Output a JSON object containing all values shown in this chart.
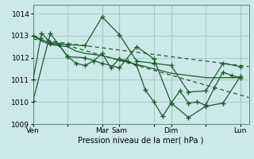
{
  "background_color": "#cce8e8",
  "grid_color": "#aacaca",
  "line_color": "#1a5c2a",
  "xlabel": "Pression niveau de la mer( hPa )",
  "ylim": [
    1009,
    1014.4
  ],
  "yticks": [
    1009,
    1010,
    1011,
    1012,
    1013,
    1014
  ],
  "xtick_labels": [
    "Ven",
    "",
    "Mar",
    "Sam",
    "",
    "Dim",
    "",
    "Lun"
  ],
  "xtick_positions": [
    0,
    12,
    24,
    30,
    42,
    48,
    60,
    72
  ],
  "xlim": [
    0,
    75
  ],
  "vline_positions": [
    24,
    30,
    48,
    72
  ],
  "trend1_x": [
    0,
    75
  ],
  "trend1_y": [
    1012.85,
    1011.6
  ],
  "trend2_x": [
    0,
    75
  ],
  "trend2_y": [
    1013.0,
    1010.2
  ],
  "s1_x": [
    0,
    3,
    6,
    9,
    12,
    15,
    18,
    21,
    24,
    27,
    30,
    33,
    36,
    39,
    42,
    45,
    48,
    51,
    54,
    57,
    60,
    63,
    66,
    69,
    72
  ],
  "s1_y": [
    1013.0,
    1012.75,
    1012.6,
    1012.55,
    1012.5,
    1012.3,
    1012.2,
    1012.15,
    1012.1,
    1012.0,
    1011.9,
    1011.8,
    1011.7,
    1011.6,
    1011.5,
    1011.4,
    1011.3,
    1011.25,
    1011.2,
    1011.15,
    1011.1,
    1011.1,
    1011.1,
    1011.1,
    1011.1
  ],
  "s2_x": [
    0,
    3,
    6,
    9,
    12,
    15,
    18,
    21,
    24,
    27,
    30,
    33,
    36,
    39,
    42,
    45,
    48,
    51,
    54,
    57,
    60,
    63,
    66,
    69,
    72
  ],
  "s2_y": [
    1011.0,
    1013.1,
    1012.7,
    1012.6,
    1012.05,
    1011.75,
    1011.65,
    1011.85,
    1012.2,
    1011.55,
    1011.95,
    1011.85,
    1011.65,
    1010.55,
    1010.0,
    1009.35,
    1009.95,
    1010.5,
    1009.95,
    1010.0,
    1009.85,
    1010.65,
    1011.35,
    1011.2,
    1011.1
  ],
  "s3_x": [
    0,
    6,
    12,
    18,
    24,
    30,
    36,
    42,
    48,
    54,
    60,
    66,
    72
  ],
  "s3_y": [
    1013.0,
    1012.65,
    1012.6,
    1012.55,
    1013.85,
    1013.05,
    1011.85,
    1011.75,
    1011.65,
    1010.45,
    1010.5,
    1011.75,
    1011.6
  ],
  "s4_x": [
    0,
    6,
    12,
    18,
    24,
    30,
    36,
    42,
    48,
    54,
    60,
    66,
    72
  ],
  "s4_y": [
    1010.05,
    1013.1,
    1012.05,
    1012.0,
    1011.75,
    1011.55,
    1012.5,
    1011.95,
    1009.95,
    1009.3,
    1009.8,
    1009.95,
    1011.15
  ]
}
